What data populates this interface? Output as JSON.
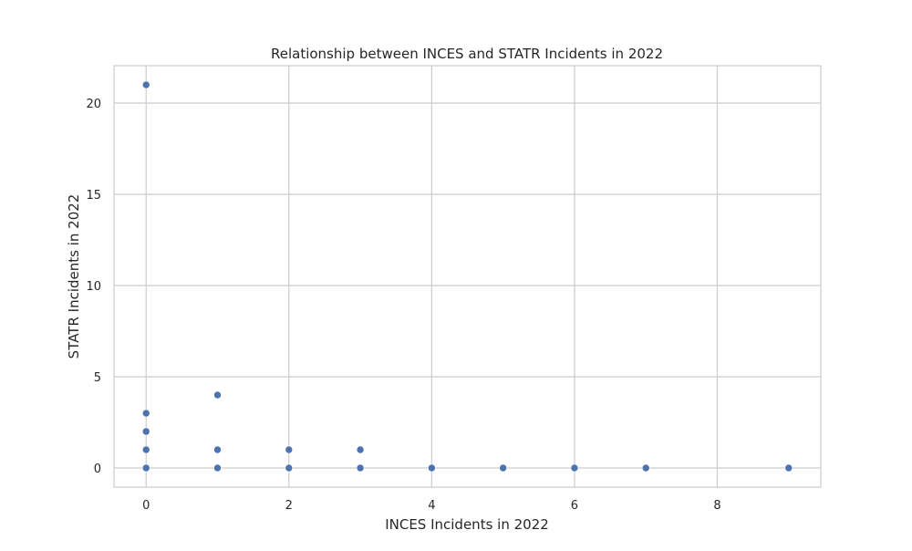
{
  "chart_data": {
    "type": "scatter",
    "title": "Relationship between INCES and STATR Incidents in 2022",
    "xlabel": "INCES Incidents in 2022",
    "ylabel": "STATR Incidents in 2022",
    "xlim": [
      -0.45,
      9.45
    ],
    "ylim": [
      -1.05,
      22.05
    ],
    "xticks": [
      0,
      2,
      4,
      6,
      8
    ],
    "yticks": [
      0,
      5,
      10,
      15,
      20
    ],
    "grid": true,
    "legend": "none",
    "marker_color": "#4c72b0",
    "points": [
      {
        "x": 0,
        "y": 21
      },
      {
        "x": 0,
        "y": 3
      },
      {
        "x": 0,
        "y": 2
      },
      {
        "x": 0,
        "y": 1
      },
      {
        "x": 0,
        "y": 0
      },
      {
        "x": 1,
        "y": 4
      },
      {
        "x": 1,
        "y": 1
      },
      {
        "x": 1,
        "y": 0
      },
      {
        "x": 2,
        "y": 1
      },
      {
        "x": 2,
        "y": 0
      },
      {
        "x": 3,
        "y": 1
      },
      {
        "x": 3,
        "y": 0
      },
      {
        "x": 4,
        "y": 0
      },
      {
        "x": 5,
        "y": 0
      },
      {
        "x": 6,
        "y": 0
      },
      {
        "x": 7,
        "y": 0
      },
      {
        "x": 9,
        "y": 0
      }
    ]
  }
}
